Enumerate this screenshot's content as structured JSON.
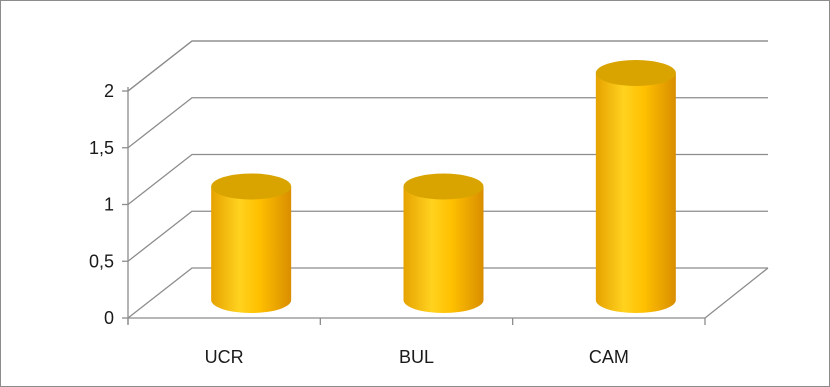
{
  "chart_data": {
    "type": "bar",
    "style": "3d-cylinder",
    "categories": [
      "UCR",
      "BUL",
      "CAM"
    ],
    "values": [
      1,
      1,
      2
    ],
    "ylim": [
      0,
      2
    ],
    "yticks": [
      "0",
      "0,5",
      "1",
      "1,5",
      "2"
    ],
    "ytick_values": [
      0,
      0.5,
      1,
      1.5,
      2
    ],
    "grid": true,
    "legend": "none",
    "bar_color": "#FFC000",
    "bar_top_color": "#D9A400",
    "grid_color": "#8C8C8C"
  }
}
